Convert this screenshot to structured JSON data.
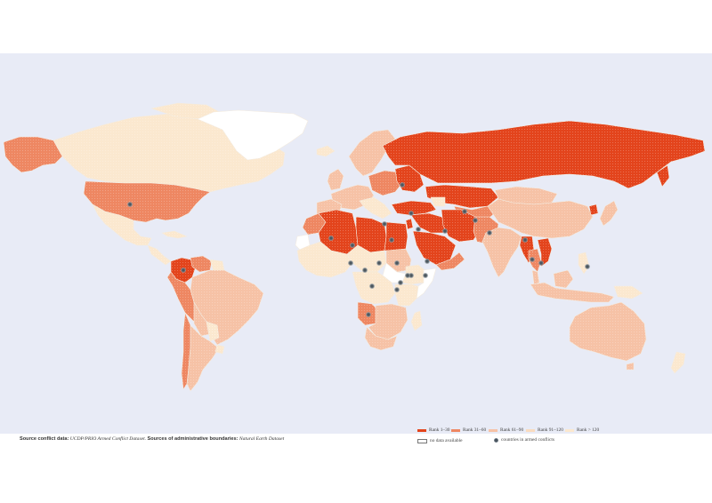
{
  "colors": {
    "ocean": "#e8ebf6",
    "rank_1_30": "#e3441c",
    "rank_31_60": "#ee8762",
    "rank_61_90": "#f6c2a6",
    "rank_91_120": "#f9dcc0",
    "rank_gt_120": "#fbe8cf",
    "no_data": "#ffffff",
    "conflict_marker": "#4e5860"
  },
  "source": {
    "label": "Source conflict data:",
    "dataset": "UCDP/PRIO Armed Conflict Dataset.",
    "boundaries_label": "Sources of administrative boundaries:",
    "boundaries_dataset": "Natural Earth Dataset"
  },
  "legend": {
    "items": [
      {
        "key": "rank_1_30",
        "label": "Rank 1–30",
        "color": "#e3441c"
      },
      {
        "key": "rank_31_60",
        "label": "Rank 31–60",
        "color": "#ee8762"
      },
      {
        "key": "rank_61_90",
        "label": "Rank 61–90",
        "color": "#f6c2a6"
      },
      {
        "key": "rank_91_120",
        "label": "Rank 91–120",
        "color": "#f9dcc0"
      },
      {
        "key": "rank_gt_120",
        "label": "Rank > 120",
        "color": "#fbe8cf"
      }
    ],
    "no_data_label": "no data available",
    "conflict_label": "countries in armed conflicts"
  },
  "map": {
    "countries_rank_1_30": [
      "Russia",
      "Kazakhstan",
      "Turkey",
      "Syria",
      "Iraq",
      "Iran",
      "Saudi Arabia",
      "Algeria",
      "Libya",
      "Egypt",
      "Israel",
      "Ukraine",
      "Belarus",
      "Vietnam",
      "Colombia",
      "Angola",
      "North Korea",
      "Myanmar"
    ],
    "countries_rank_31_60": [
      "United States",
      "Alaska",
      "Peru",
      "Ecuador",
      "Venezuela",
      "Chile",
      "Morocco",
      "Yemen",
      "Oman",
      "Pakistan",
      "Afghanistan",
      "Thailand",
      "Cambodia",
      "Greece",
      "Poland",
      "Uzbekistan"
    ],
    "countries_rank_61_90": [
      "Brazil",
      "India",
      "Australia",
      "Argentina",
      "Bolivia",
      "Sweden",
      "Finland",
      "Germany",
      "France",
      "Spain",
      "Sudan",
      "South Africa",
      "Indonesia",
      "Malaysia",
      "Mexico",
      "Mongolia",
      "China",
      "Japan"
    ],
    "countries_no_data": [
      "Greenland",
      "Western Sahara",
      "South Sudan",
      "Somalia",
      "Mongolia (part)"
    ],
    "conflict_countries": [
      "United States",
      "Colombia",
      "Mali",
      "Niger",
      "Nigeria",
      "Chad",
      "Sudan",
      "South Sudan",
      "Ethiopia",
      "Somalia",
      "Central African Republic",
      "DR Congo",
      "Uganda",
      "Libya",
      "Egypt",
      "Israel",
      "Syria",
      "Turkey",
      "Ukraine",
      "Iraq",
      "Yemen",
      "Afghanistan",
      "Pakistan",
      "India",
      "Myanmar",
      "Thailand",
      "Philippines",
      "Angola",
      "Algeria"
    ]
  }
}
